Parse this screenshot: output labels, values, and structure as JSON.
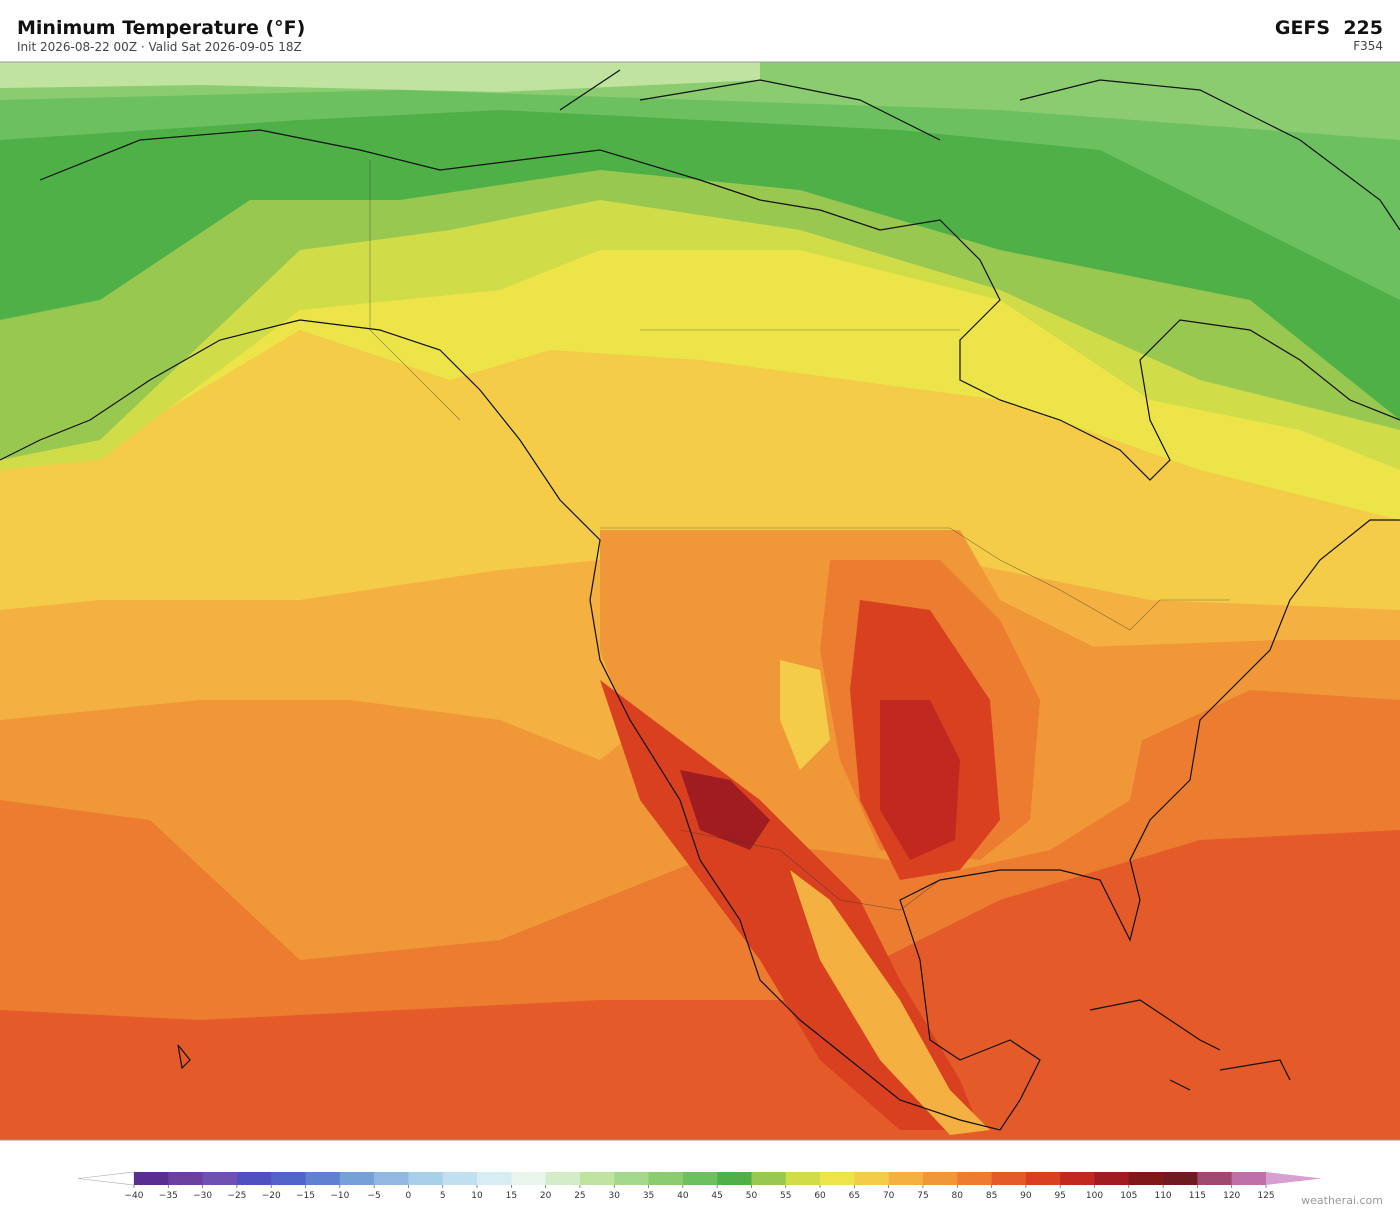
{
  "header": {
    "title": "Minimum Temperature  (°F)",
    "subtitle": "Init 2026-08-22 00Z  ·  Valid Sat 2026-09-05 18Z",
    "model": "GEFS  225",
    "forecast_hour": "F354"
  },
  "colorbar": {
    "ticks": [
      {
        "value": -40,
        "label": "−40"
      },
      {
        "value": -35,
        "label": "−35"
      },
      {
        "value": -30,
        "label": "−30"
      },
      {
        "value": -25,
        "label": "−25"
      },
      {
        "value": -20,
        "label": "−20"
      },
      {
        "value": -15,
        "label": "−15"
      },
      {
        "value": -10,
        "label": "−10"
      },
      {
        "value": -5,
        "label": "−5"
      },
      0,
      5,
      10,
      15,
      20,
      25,
      30,
      35,
      40,
      45,
      50,
      55,
      60,
      65,
      70,
      75,
      80,
      85,
      90,
      95,
      100,
      105,
      110,
      115,
      120,
      125
    ],
    "colors": [
      "#5a2d91",
      "#6b3fa0",
      "#7050b0",
      "#5050c0",
      "#4f63c8",
      "#6080d0",
      "#78a0d8",
      "#90b8e0",
      "#a8d0ea",
      "#c0e0f0",
      "#d8ecf4",
      "#e8f4ec",
      "#d4ecc8",
      "#c0e4a0",
      "#a4d88c",
      "#8ccc70",
      "#6cc060",
      "#50b048",
      "#98c850",
      "#d0dc48",
      "#ece448",
      "#f4cc48",
      "#f4b040",
      "#f09838",
      "#ec7c30",
      "#e45a28",
      "#d84020",
      "#c02820",
      "#a01c20",
      "#801818",
      "#6e1a20",
      "#a04870",
      "#c070a8"
    ],
    "under_color": "#ffffff",
    "over_color": "#d8a0d0"
  },
  "footer": {
    "watermark": "weatherai.com"
  }
}
